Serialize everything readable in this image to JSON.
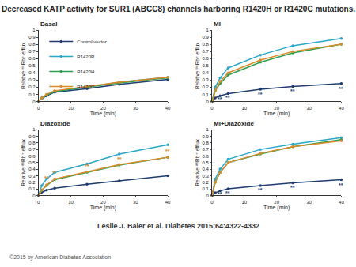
{
  "title": "Decreased KATP activity for SUR1 (ABCC8) channels harboring R1420H or R1420C mutations.",
  "citation": "Leslie J. Baier et al. Diabetes 2015;64:4322-4332",
  "copyright": "©2015 by American Diabetes Association",
  "chart_data": [
    {
      "type": "line",
      "title": "Basal",
      "x_label": "Time (min)",
      "y_label": "Relative ⁸⁶Rb⁺ efflux",
      "x": [
        0,
        1,
        2.5,
        5,
        15,
        25,
        40
      ],
      "xlim": [
        0,
        40
      ],
      "xticks": [
        0,
        10,
        20,
        30,
        40
      ],
      "ylim": [
        0,
        1
      ],
      "yticks": [
        0,
        0.1,
        0.2,
        0.3,
        0.4,
        0.5,
        0.6,
        0.7,
        0.8,
        0.9,
        1
      ],
      "grid": false,
      "legend": "top left",
      "marker": "circle",
      "line_style": "solid",
      "series": [
        {
          "name": "Control vector",
          "color": "#1f3c6e",
          "values": [
            0,
            0.04,
            0.08,
            0.13,
            0.18,
            0.24,
            0.31
          ]
        },
        {
          "name": "R1420R",
          "color": "#2aa6c6",
          "values": [
            0,
            0.05,
            0.09,
            0.14,
            0.2,
            0.27,
            0.34
          ]
        },
        {
          "name": "R1420H",
          "color": "#2e9e4f",
          "values": [
            0,
            0.05,
            0.09,
            0.14,
            0.2,
            0.26,
            0.33
          ]
        },
        {
          "name": "R1420C",
          "color": "#d98a2a",
          "values": [
            0,
            0.05,
            0.1,
            0.15,
            0.21,
            0.27,
            0.34
          ]
        }
      ],
      "annotations": []
    },
    {
      "type": "line",
      "title": "MI",
      "x_label": "Time (min)",
      "y_label": "Relative ⁸⁶Rb⁺ efflux",
      "x": [
        0,
        1,
        2.5,
        5,
        15,
        25,
        40
      ],
      "xlim": [
        0,
        40
      ],
      "xticks": [
        0,
        10,
        20,
        30,
        40
      ],
      "ylim": [
        0,
        1
      ],
      "yticks": [
        0,
        0.1,
        0.2,
        0.3,
        0.4,
        0.5,
        0.6,
        0.7,
        0.8,
        0.9,
        1
      ],
      "grid": false,
      "marker": "circle",
      "line_style": "solid",
      "series": [
        {
          "name": "Control vector",
          "color": "#1f3c6e",
          "values": [
            0,
            0.05,
            0.08,
            0.11,
            0.17,
            0.21,
            0.25
          ]
        },
        {
          "name": "R1420R",
          "color": "#2aa6c6",
          "values": [
            0,
            0.2,
            0.33,
            0.47,
            0.65,
            0.78,
            0.88
          ]
        },
        {
          "name": "R1420H",
          "color": "#2e9e4f",
          "values": [
            0,
            0.15,
            0.25,
            0.37,
            0.55,
            0.68,
            0.8
          ]
        },
        {
          "name": "R1420C",
          "color": "#d98a2a",
          "values": [
            0,
            0.15,
            0.28,
            0.4,
            0.58,
            0.7,
            0.8
          ]
        }
      ],
      "annotations": [
        {
          "x": 2.5,
          "y": 0.03,
          "text": "**",
          "color": "#1f3c6e"
        },
        {
          "x": 5,
          "y": 0.05,
          "text": "**",
          "color": "#1f3c6e"
        },
        {
          "x": 15,
          "y": 0.1,
          "text": "**",
          "color": "#1f3c6e"
        },
        {
          "x": 25,
          "y": 0.14,
          "text": "**",
          "color": "#1f3c6e"
        },
        {
          "x": 40,
          "y": 0.18,
          "text": "**",
          "color": "#1f3c6e"
        }
      ]
    },
    {
      "type": "line",
      "title": "Diazoxide",
      "x_label": "Time (min)",
      "y_label": "Relative ⁸⁶Rb⁺ efflux",
      "x": [
        0,
        1,
        2.5,
        5,
        15,
        25,
        40
      ],
      "xlim": [
        0,
        40
      ],
      "xticks": [
        0,
        10,
        20,
        30,
        40
      ],
      "ylim": [
        0,
        1
      ],
      "yticks": [
        0,
        0.1,
        0.2,
        0.3,
        0.4,
        0.5,
        0.6,
        0.7,
        0.8,
        0.9,
        1
      ],
      "grid": false,
      "marker": "circle",
      "line_style": "solid",
      "series": [
        {
          "name": "Control vector",
          "color": "#1f3c6e",
          "values": [
            0,
            0.05,
            0.08,
            0.11,
            0.17,
            0.22,
            0.3
          ]
        },
        {
          "name": "R1420R",
          "color": "#2aa6c6",
          "values": [
            0,
            0.15,
            0.25,
            0.35,
            0.48,
            0.63,
            0.77
          ]
        },
        {
          "name": "R1420H",
          "color": "#2e9e4f",
          "values": [
            0,
            0.08,
            0.15,
            0.24,
            0.35,
            0.46,
            0.58
          ]
        },
        {
          "name": "R1420C",
          "color": "#d98a2a",
          "values": [
            0,
            0.08,
            0.16,
            0.25,
            0.36,
            0.47,
            0.58
          ]
        }
      ],
      "annotations": [
        {
          "x": 2.5,
          "y": 0.26,
          "text": "**",
          "color": "#d98a2a"
        },
        {
          "x": 5,
          "y": 0.35,
          "text": "**",
          "color": "#d98a2a"
        },
        {
          "x": 15,
          "y": 0.44,
          "text": "**",
          "color": "#d98a2a"
        },
        {
          "x": 25,
          "y": 0.55,
          "text": "**",
          "color": "#d98a2a"
        },
        {
          "x": 40,
          "y": 0.67,
          "text": "**",
          "color": "#d98a2a"
        }
      ]
    },
    {
      "type": "line",
      "title": "MI+Diazoxide",
      "x_label": "Time (min)",
      "y_label": "Relative ⁸⁶Rb⁺ efflux",
      "x": [
        0,
        1,
        2.5,
        5,
        15,
        25,
        40
      ],
      "xlim": [
        0,
        40
      ],
      "xticks": [
        0,
        10,
        20,
        30,
        40
      ],
      "ylim": [
        0,
        1
      ],
      "yticks": [
        0,
        0.1,
        0.2,
        0.3,
        0.4,
        0.5,
        0.6,
        0.7,
        0.8,
        0.9,
        1
      ],
      "grid": false,
      "marker": "circle",
      "line_style": "solid",
      "series": [
        {
          "name": "Control vector",
          "color": "#1f3c6e",
          "values": [
            0,
            0.04,
            0.07,
            0.1,
            0.15,
            0.19,
            0.24
          ]
        },
        {
          "name": "R1420R",
          "color": "#2aa6c6",
          "values": [
            0,
            0.25,
            0.4,
            0.55,
            0.7,
            0.78,
            0.88
          ]
        },
        {
          "name": "R1420H",
          "color": "#2e9e4f",
          "values": [
            0,
            0.2,
            0.35,
            0.5,
            0.63,
            0.74,
            0.85
          ]
        },
        {
          "name": "R1420C",
          "color": "#d98a2a",
          "values": [
            0,
            0.2,
            0.35,
            0.5,
            0.64,
            0.74,
            0.83
          ]
        }
      ],
      "annotations": [
        {
          "x": 2.5,
          "y": 0.02,
          "text": "**",
          "color": "#1f3c6e"
        },
        {
          "x": 5,
          "y": 0.04,
          "text": "**",
          "color": "#1f3c6e"
        },
        {
          "x": 15,
          "y": 0.08,
          "text": "**",
          "color": "#1f3c6e"
        },
        {
          "x": 25,
          "y": 0.12,
          "text": "**",
          "color": "#1f3c6e"
        },
        {
          "x": 40,
          "y": 0.16,
          "text": "**",
          "color": "#1f3c6e"
        }
      ]
    }
  ]
}
